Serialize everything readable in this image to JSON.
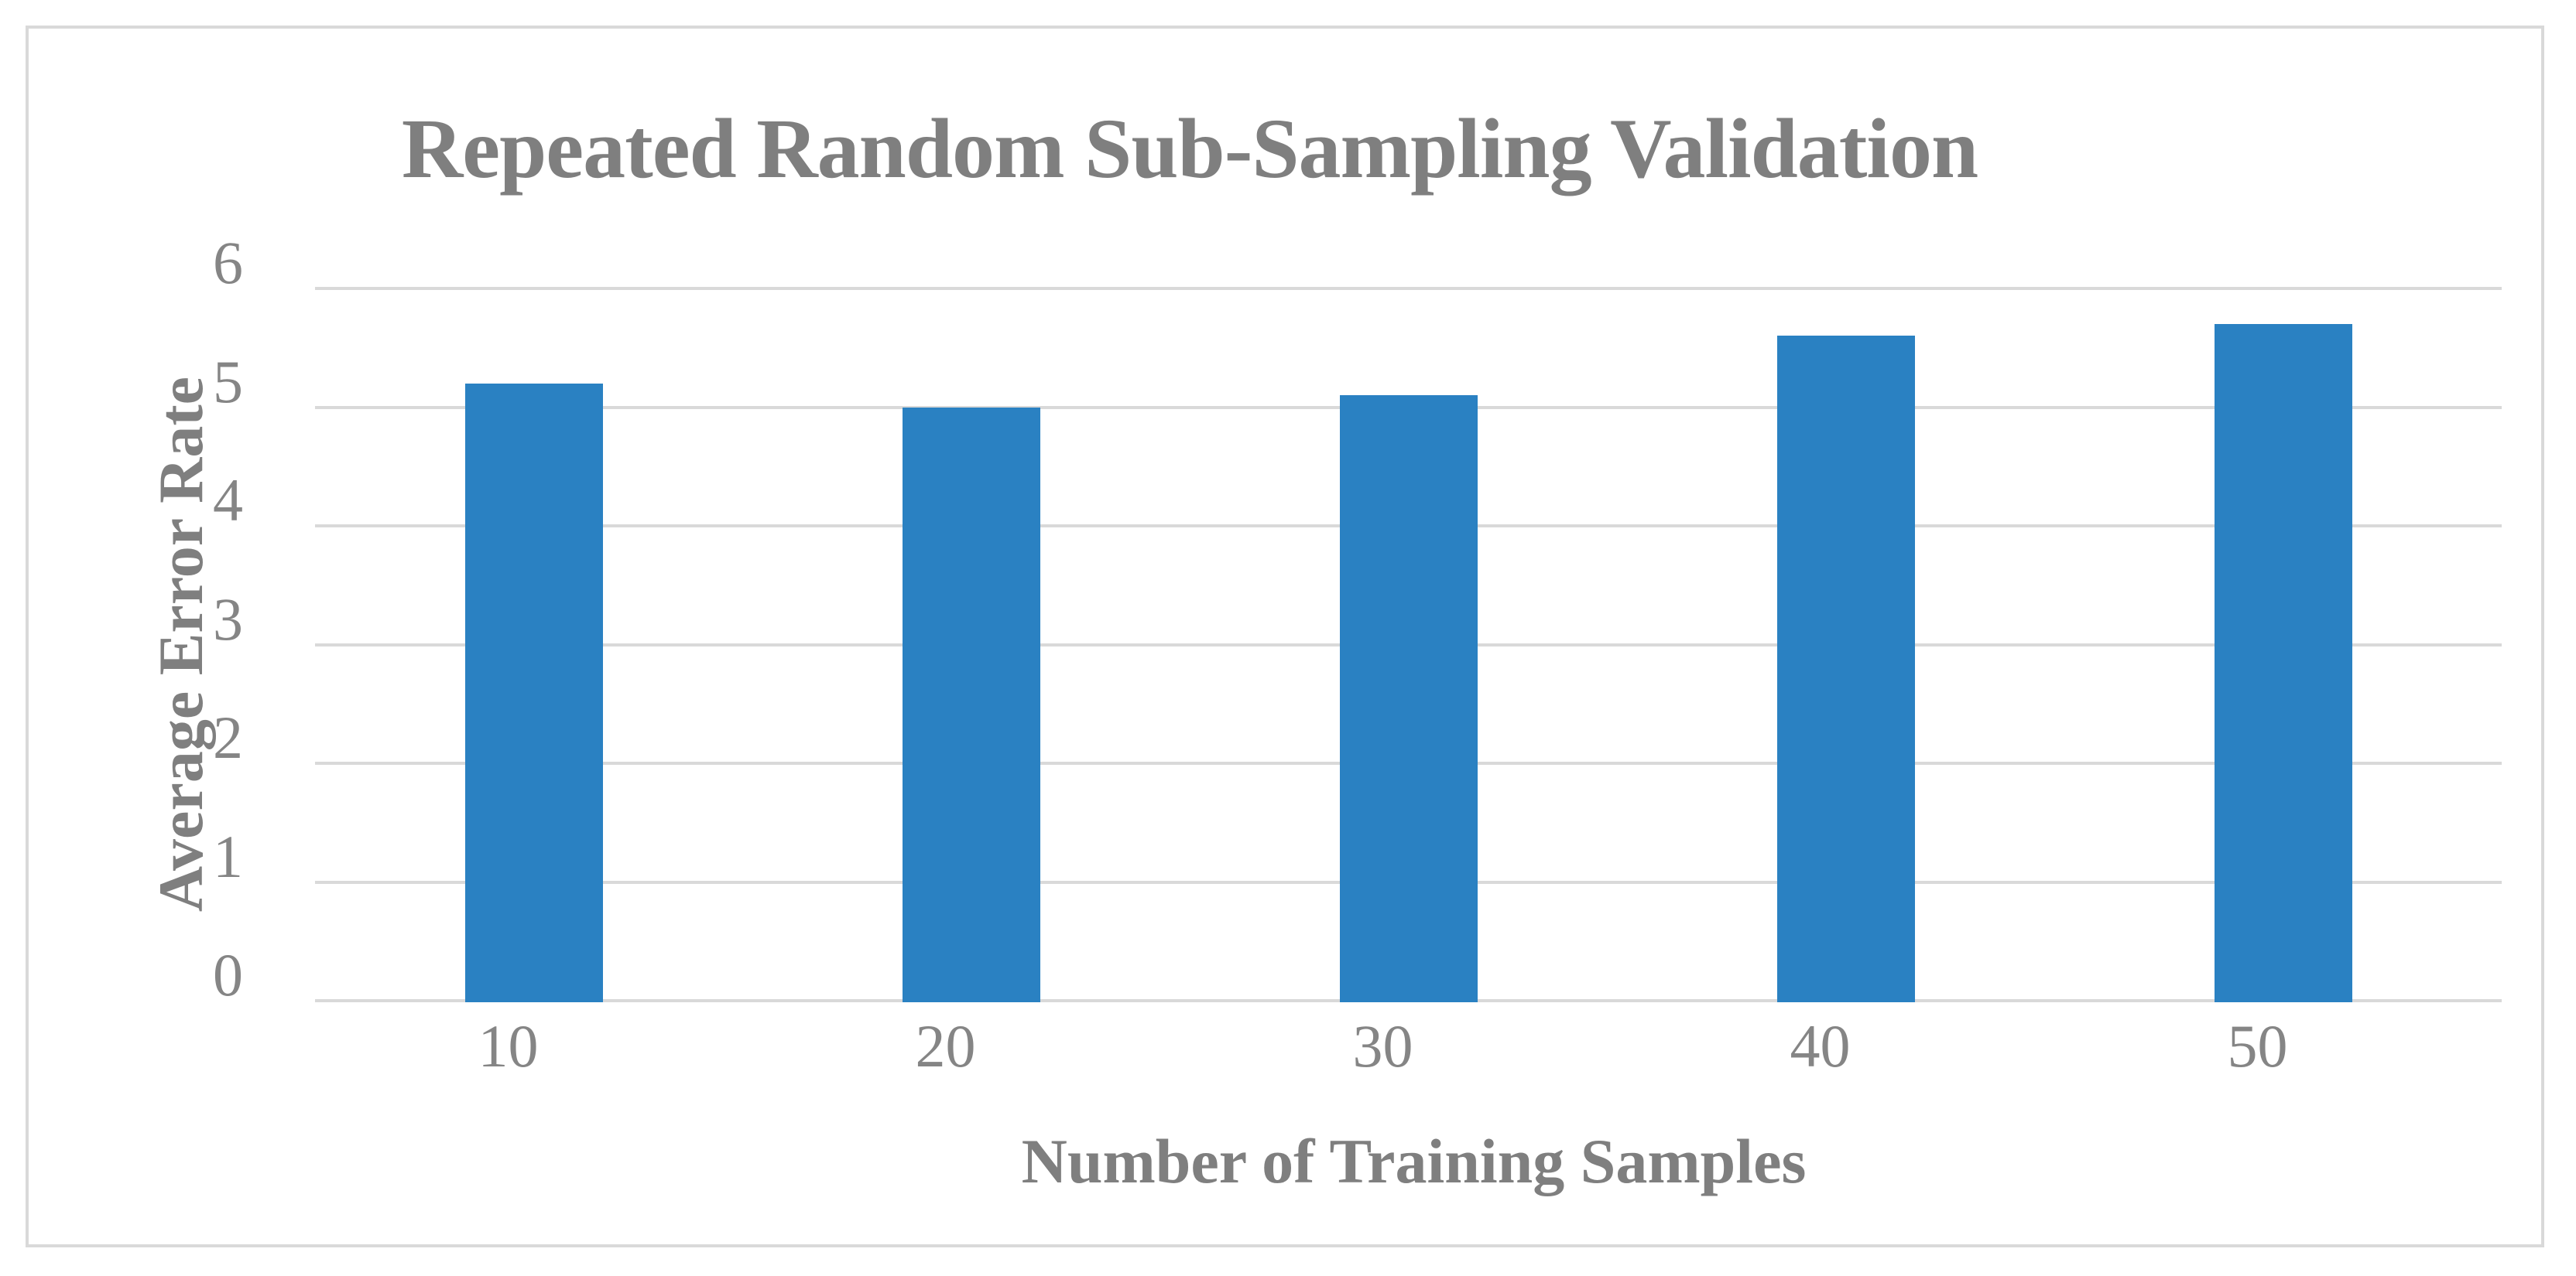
{
  "chart_data": {
    "type": "bar",
    "title": "Repeated Random Sub-Sampling Validation",
    "xlabel": "Number of Training Samples",
    "ylabel": "Average Error Rate",
    "categories": [
      "10",
      "20",
      "30",
      "40",
      "50"
    ],
    "values": [
      5.2,
      5.0,
      5.1,
      5.6,
      5.7
    ],
    "ylim": [
      0,
      6
    ],
    "yticks": [
      0,
      1,
      2,
      3,
      4,
      5,
      6
    ],
    "grid": "horizontal",
    "legend": "none",
    "colors": {
      "bar": "#2a81c2",
      "gridline": "#d9d9d9",
      "frame_border": "#d9d9d9",
      "title_text": "#7f7f7f",
      "tick_text": "#858585",
      "background": "#ffffff"
    }
  }
}
